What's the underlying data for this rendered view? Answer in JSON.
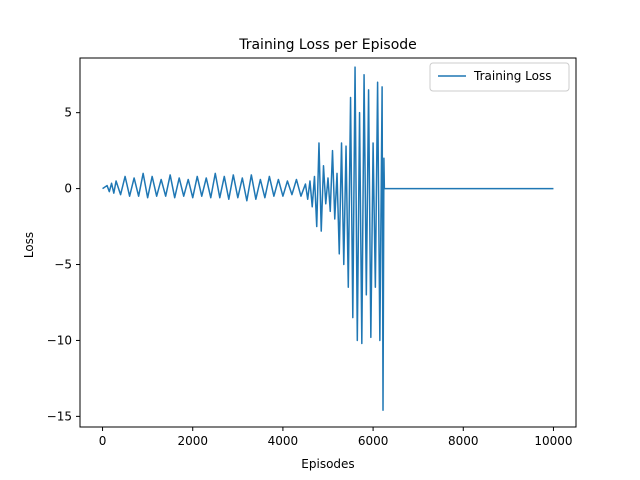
{
  "chart_data": {
    "type": "line",
    "title": "Training Loss per Episode",
    "xlabel": "Episodes",
    "ylabel": "Loss",
    "xlim": [
      -500,
      10500
    ],
    "ylim": [
      -15.7,
      8.6
    ],
    "xticks": [
      0,
      2000,
      4000,
      6000,
      8000,
      10000
    ],
    "xtick_labels": [
      "0",
      "2000",
      "4000",
      "6000",
      "8000",
      "10000"
    ],
    "yticks": [
      -15,
      -10,
      -5,
      0,
      5
    ],
    "ytick_labels": [
      "−15",
      "−10",
      "−5",
      "0",
      "5"
    ],
    "grid": false,
    "legend_position": "top-right",
    "series": [
      {
        "name": "Training Loss",
        "color": "#1f77b4",
        "x": [
          0,
          100,
          150,
          200,
          250,
          300,
          400,
          500,
          600,
          700,
          800,
          900,
          1000,
          1100,
          1200,
          1300,
          1400,
          1500,
          1600,
          1700,
          1800,
          1900,
          2000,
          2100,
          2200,
          2300,
          2400,
          2500,
          2600,
          2700,
          2800,
          2900,
          3000,
          3100,
          3200,
          3300,
          3400,
          3500,
          3600,
          3700,
          3800,
          3900,
          4000,
          4100,
          4200,
          4300,
          4400,
          4500,
          4550,
          4600,
          4650,
          4700,
          4750,
          4800,
          4850,
          4900,
          4950,
          5000,
          5050,
          5100,
          5150,
          5200,
          5250,
          5300,
          5350,
          5400,
          5450,
          5500,
          5550,
          5600,
          5650,
          5700,
          5750,
          5800,
          5850,
          5900,
          5950,
          6000,
          6050,
          6100,
          6150,
          6200,
          6220,
          6240,
          6250,
          6300,
          7000,
          8000,
          9000,
          10000
        ],
        "y": [
          0.0,
          0.2,
          -0.2,
          0.35,
          -0.3,
          0.5,
          -0.4,
          0.8,
          -0.5,
          0.7,
          -0.5,
          1.0,
          -0.6,
          0.8,
          -0.5,
          0.6,
          -0.5,
          0.9,
          -0.6,
          0.7,
          -0.5,
          0.6,
          -0.6,
          0.8,
          -0.5,
          0.7,
          -0.6,
          1.0,
          -0.6,
          0.8,
          -0.7,
          0.9,
          -0.6,
          0.7,
          -0.8,
          0.9,
          -0.7,
          0.6,
          -0.6,
          0.8,
          -0.5,
          0.6,
          -0.5,
          0.5,
          -0.4,
          0.6,
          -0.5,
          0.3,
          -0.7,
          0.5,
          -1.2,
          0.8,
          -2.5,
          3.0,
          -2.8,
          1.5,
          -1.0,
          0.7,
          -1.5,
          2.5,
          -2.0,
          1.0,
          -4.3,
          3.0,
          -5.0,
          2.8,
          -6.5,
          6.0,
          -8.5,
          8.0,
          -10.0,
          5.0,
          -10.2,
          7.5,
          -7.0,
          6.5,
          -9.8,
          3.0,
          -6.5,
          7.0,
          -10.0,
          6.7,
          -14.6,
          2.0,
          0.0,
          0.0,
          0.0,
          0.0,
          0.0,
          0.0
        ]
      }
    ]
  }
}
